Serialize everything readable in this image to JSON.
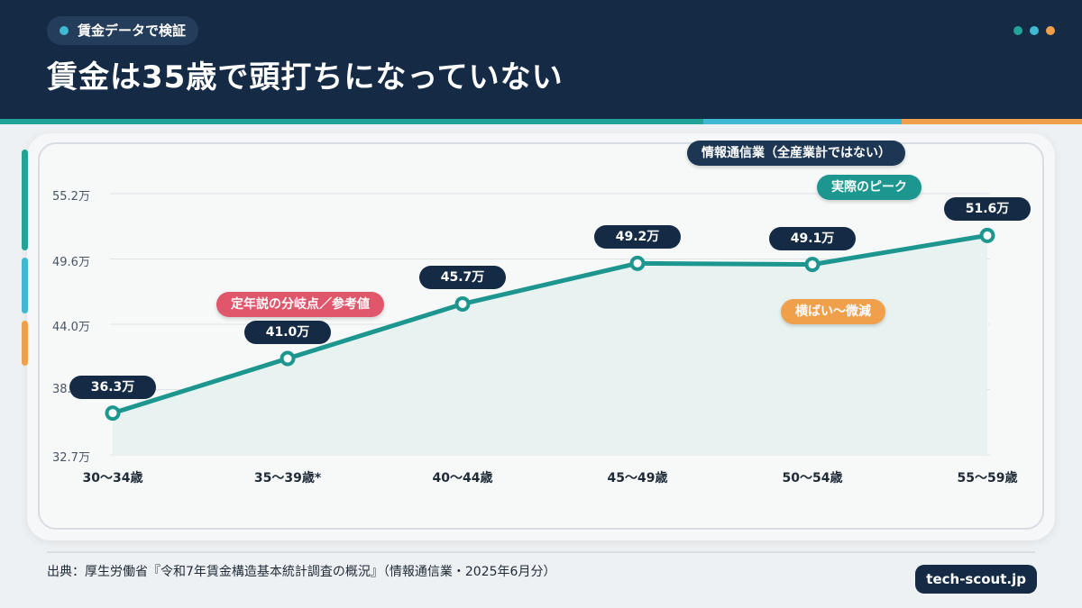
{
  "header": {
    "tag": "賃金データで検証",
    "title": "賃金は35歳で頭打ちになっていない",
    "dot_colors": [
      "#22a398",
      "#3fb8d4",
      "#f0a04b"
    ]
  },
  "annotations": {
    "industry": "情報通信業（全産業計ではない）",
    "peak": "実際のピーク",
    "retirement": "定年説の分岐点／参考値",
    "plateau": "横ばい〜微減"
  },
  "chart_data": {
    "type": "line",
    "categories": [
      "30〜34歳",
      "35〜39歳*",
      "40〜44歳",
      "45〜49歳",
      "50〜54歳",
      "55〜59歳"
    ],
    "values": [
      36.3,
      41.0,
      45.7,
      49.2,
      49.1,
      51.6
    ],
    "value_labels": [
      "36.3万",
      "41.0万",
      "45.7万",
      "49.2万",
      "49.1万",
      "51.6万"
    ],
    "unit": "万",
    "ylim": [
      32.7,
      55.2
    ],
    "yticks": [
      "55.2万",
      "49.6万",
      "44.0万",
      "38.",
      "32.7万"
    ],
    "grid": true,
    "colors": {
      "line": "#1c968e",
      "area": "#e8f3f1",
      "marker_fill": "#ffffff"
    }
  },
  "footer": {
    "source": "出典：厚生労働省『令和7年賃金構造基本統計調査の概況』（情報通信業・2025年6月分）",
    "brand": "tech-scout.jp"
  }
}
